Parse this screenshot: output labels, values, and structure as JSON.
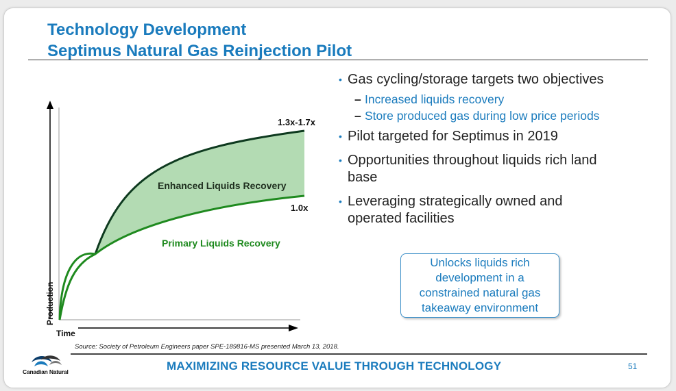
{
  "title": {
    "line1": "Technology Development",
    "line2": "Septimus Natural Gas Reinjection Pilot"
  },
  "chart": {
    "y_axis_label": "Production",
    "x_axis_label": "Time",
    "upper_curve_label": "1.3x-1.7x",
    "lower_curve_label": "1.0x",
    "enhanced_label": "Enhanced Liquids Recovery",
    "primary_label": "Primary Liquids Recovery",
    "colors": {
      "enhanced_fill": "#b3dbb3",
      "enhanced_line": "#0e3a1f",
      "primary_line": "#1f8a1f",
      "primary_text": "#1f8a1f"
    }
  },
  "bullets": [
    {
      "text": "Gas cycling/storage targets two objectives",
      "subs": [
        "Increased liquids recovery",
        "Store produced gas during low price periods"
      ]
    },
    {
      "text": "Pilot targeted for Septimus in 2019",
      "subs": []
    },
    {
      "text": "Opportunities throughout liquids rich land base",
      "subs": []
    },
    {
      "text": "Leveraging strategically owned and operated facilities",
      "subs": []
    }
  ],
  "callout": "Unlocks liquids rich development in a constrained natural gas takeaway environment",
  "source": "Source: Society of Petroleum Engineers paper SPE-189816-MS presented March 13, 2018.",
  "footer": {
    "logo_text": "Canadian Natural",
    "tagline": "MAXIMIZING RESOURCE VALUE THROUGH TECHNOLOGY",
    "page_number": "51"
  }
}
